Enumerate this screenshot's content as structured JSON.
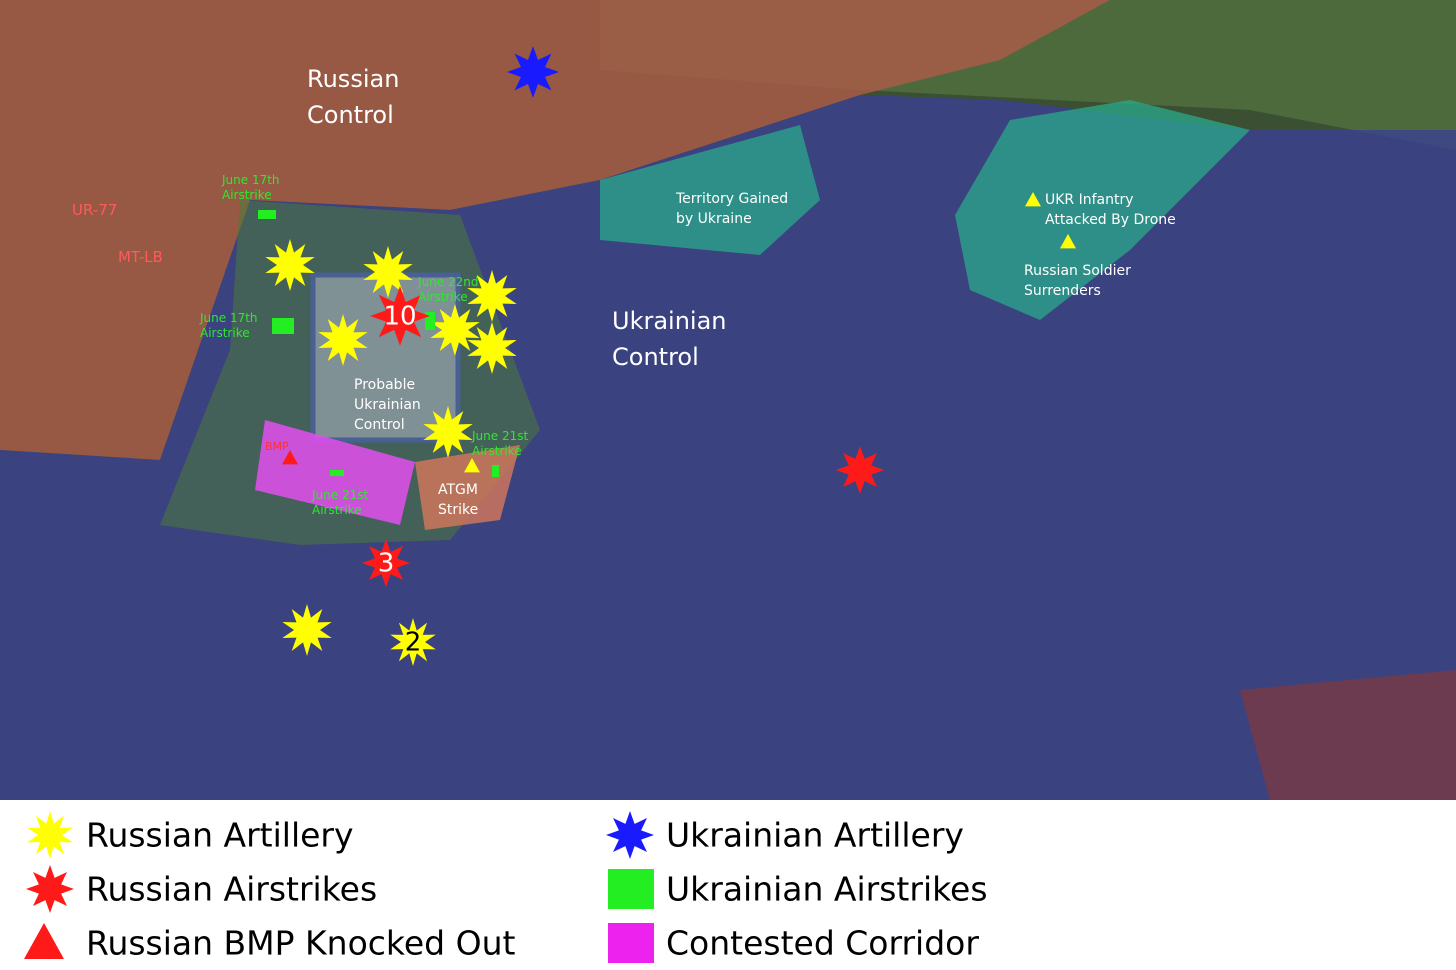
{
  "map": {
    "labels": [
      {
        "lines": [
          "Russian",
          "Control"
        ],
        "kind": "region"
      },
      {
        "lines": [
          "Ukrainian",
          "Control"
        ],
        "kind": "region"
      },
      {
        "lines": [
          "Territory Gained",
          "by Ukraine"
        ],
        "kind": "note"
      },
      {
        "lines": [
          "UKR Infantry",
          "Attacked By Drone"
        ],
        "kind": "note"
      },
      {
        "lines": [
          "Russian Soldier",
          "Surrenders"
        ],
        "kind": "note"
      },
      {
        "lines": [
          "Probable",
          "Ukrainian",
          "Control"
        ],
        "kind": "note"
      },
      {
        "lines": [
          "ATGM",
          "Strike"
        ],
        "kind": "note"
      },
      {
        "lines": [
          "June 17th",
          "Airstrike"
        ],
        "kind": "green"
      },
      {
        "lines": [
          "June 17th",
          "Airstrike"
        ],
        "kind": "green"
      },
      {
        "lines": [
          "June 22nd",
          "Airstrike"
        ],
        "kind": "green"
      },
      {
        "lines": [
          "June 21st",
          "Airstrike"
        ],
        "kind": "green"
      },
      {
        "lines": [
          "June 21st",
          "Airstrike"
        ],
        "kind": "green"
      },
      {
        "lines": [
          "UR-77"
        ],
        "kind": "red"
      },
      {
        "lines": [
          "MT-LB"
        ],
        "kind": "red"
      },
      {
        "lines": [
          "BMP"
        ],
        "kind": "redsmall"
      }
    ],
    "marker_numbers": [
      "10",
      "3",
      "2"
    ],
    "legend": [
      "Russian Artillery",
      "Russian Airstrikes",
      "Russian BMP Knocked Out",
      "Ukrainian Artillery",
      "Ukrainian Airstrikes",
      "Contested Corridor"
    ]
  }
}
